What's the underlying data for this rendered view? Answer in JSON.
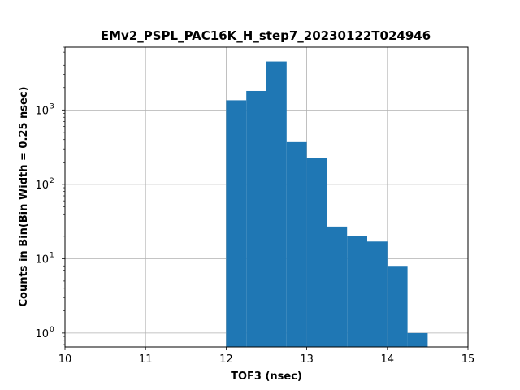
{
  "chart_data": {
    "type": "bar",
    "title": "EMv2_PSPL_PAC16K_H_step7_20230122T024946",
    "xlabel": "TOF3 (nsec)",
    "ylabel": "Counts in Bin(Bin Width = 0.25 nsec)",
    "xlim": [
      10,
      15
    ],
    "ylim": [
      0.65,
      7000
    ],
    "yscale": "log",
    "grid": true,
    "bar_color": "#1f77b4",
    "x_ticks": [
      "10",
      "11",
      "12",
      "13",
      "14",
      "15"
    ],
    "y_ticks": [
      {
        "base": "10",
        "exp": "0",
        "value": 1
      },
      {
        "base": "10",
        "exp": "1",
        "value": 10
      },
      {
        "base": "10",
        "exp": "2",
        "value": 100
      },
      {
        "base": "10",
        "exp": "3",
        "value": 1000
      }
    ],
    "bins": [
      {
        "x0": 12.0,
        "x1": 12.25,
        "count": 1350
      },
      {
        "x0": 12.25,
        "x1": 12.5,
        "count": 1800
      },
      {
        "x0": 12.5,
        "x1": 12.75,
        "count": 4500
      },
      {
        "x0": 12.75,
        "x1": 13.0,
        "count": 370
      },
      {
        "x0": 13.0,
        "x1": 13.25,
        "count": 225
      },
      {
        "x0": 13.25,
        "x1": 13.5,
        "count": 27
      },
      {
        "x0": 13.5,
        "x1": 13.75,
        "count": 20
      },
      {
        "x0": 13.75,
        "x1": 14.0,
        "count": 17
      },
      {
        "x0": 14.0,
        "x1": 14.25,
        "count": 8
      },
      {
        "x0": 14.25,
        "x1": 14.5,
        "count": 1
      }
    ]
  }
}
